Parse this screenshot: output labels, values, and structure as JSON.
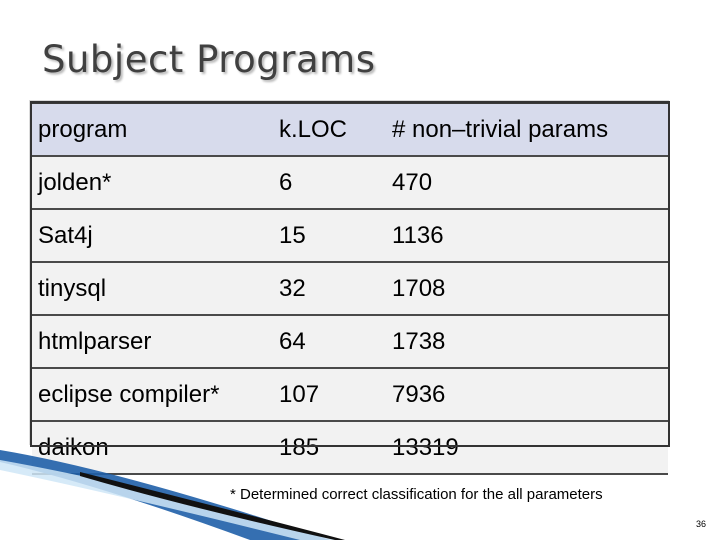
{
  "slide": {
    "title": "Subject Programs",
    "footnote": "*  Determined correct classification for the all parameters",
    "page_number": "36"
  },
  "table": {
    "headers": [
      "program",
      "k.LOC",
      "# non–trivial params"
    ],
    "rows": [
      [
        "jolden*",
        "6",
        "470"
      ],
      [
        "Sat4j",
        "15",
        "1136"
      ],
      [
        "tinysql",
        "32",
        "1708"
      ],
      [
        "htmlparser",
        "64",
        "1738"
      ],
      [
        "eclipse compiler*",
        "107",
        "7936"
      ],
      [
        "daikon",
        "185",
        "13319"
      ]
    ]
  },
  "colors": {
    "header_bg": "#d7dbec",
    "row_bg": "#f2f2f2",
    "title_color": "#404040",
    "accent_blue": "#1f5fa8"
  }
}
